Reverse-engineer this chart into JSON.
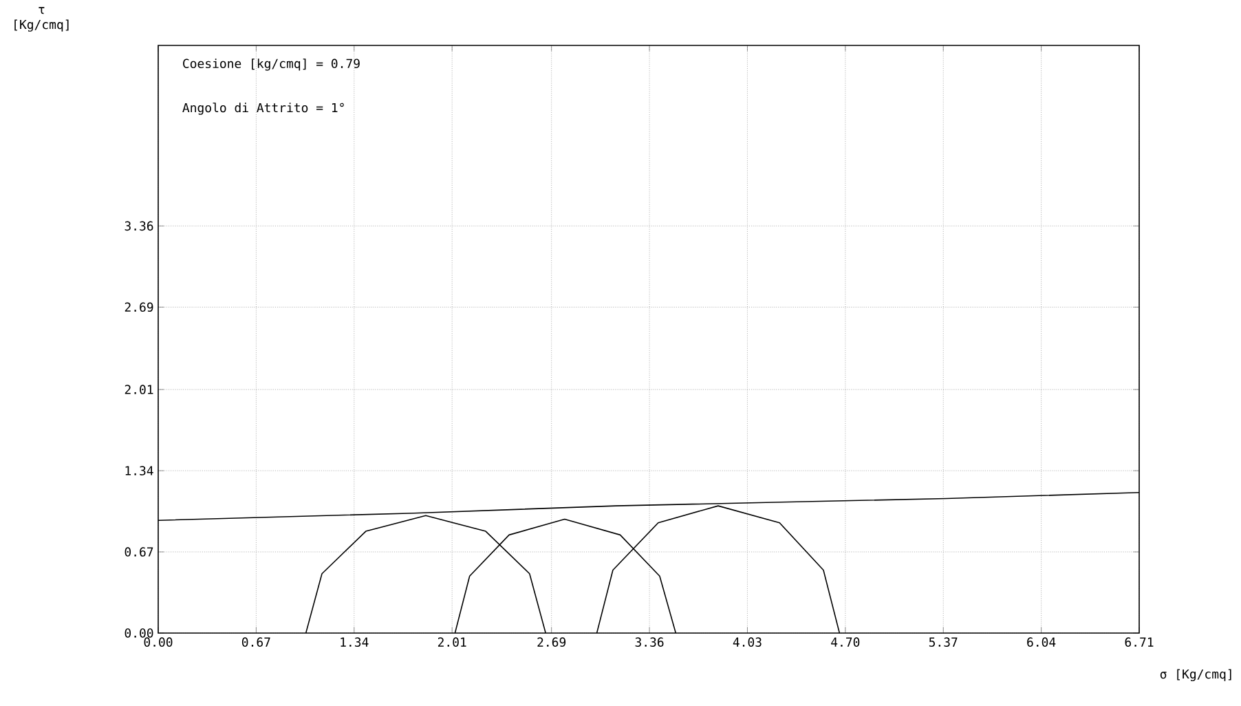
{
  "chart_data": {
    "type": "line",
    "xlabel": "σ [Kg/cmq]",
    "ylabel": "τ [Kg/cmq]",
    "annotations": [
      "Coesione [kg/cmq] = 0.79",
      "Angolo di Attrito =    1°"
    ],
    "xlim": [
      0,
      6.71
    ],
    "ylim": [
      0,
      4.85
    ],
    "xticks": [
      {
        "value": 0,
        "label": "0.00"
      },
      {
        "value": 0.67,
        "label": "0.67"
      },
      {
        "value": 1.34,
        "label": "1.34"
      },
      {
        "value": 2.01,
        "label": "2.01"
      },
      {
        "value": 2.69,
        "label": "2.69"
      },
      {
        "value": 3.36,
        "label": "3.36"
      },
      {
        "value": 4.03,
        "label": "4.03"
      },
      {
        "value": 4.7,
        "label": "4.70"
      },
      {
        "value": 5.37,
        "label": "5.37"
      },
      {
        "value": 6.04,
        "label": "6.04"
      },
      {
        "value": 6.71,
        "label": "6.71"
      }
    ],
    "yticks": [
      {
        "value": 0,
        "label": "0.00"
      },
      {
        "value": 0.67,
        "label": "0.67"
      },
      {
        "value": 1.34,
        "label": "1.34"
      },
      {
        "value": 2.01,
        "label": "2.01"
      },
      {
        "value": 2.69,
        "label": "2.69"
      },
      {
        "value": 3.36,
        "label": "3.36"
      }
    ],
    "grid": true,
    "marker": "none",
    "series": [
      {
        "color": "#000000",
        "x": [
          0,
          1.75,
          3.13,
          4.26,
          5.39,
          6.71
        ],
        "values": [
          0.93,
          0.99,
          1.05,
          1.08,
          1.11,
          1.16
        ]
      },
      {
        "color": "#000000",
        "x": [
          1.01,
          1.12,
          1.42,
          1.83,
          2.24,
          2.54,
          2.65
        ],
        "values": [
          0,
          0.49,
          0.84,
          0.97,
          0.84,
          0.49,
          0
        ]
      },
      {
        "color": "#000000",
        "x": [
          2.03,
          2.13,
          2.4,
          2.78,
          3.16,
          3.43,
          3.54
        ],
        "values": [
          0,
          0.47,
          0.81,
          0.94,
          0.81,
          0.47,
          0
        ]
      },
      {
        "color": "#000000",
        "x": [
          3.0,
          3.11,
          3.42,
          3.83,
          4.25,
          4.55,
          4.66
        ],
        "values": [
          0,
          0.52,
          0.91,
          1.05,
          0.91,
          0.52,
          0
        ]
      }
    ]
  }
}
